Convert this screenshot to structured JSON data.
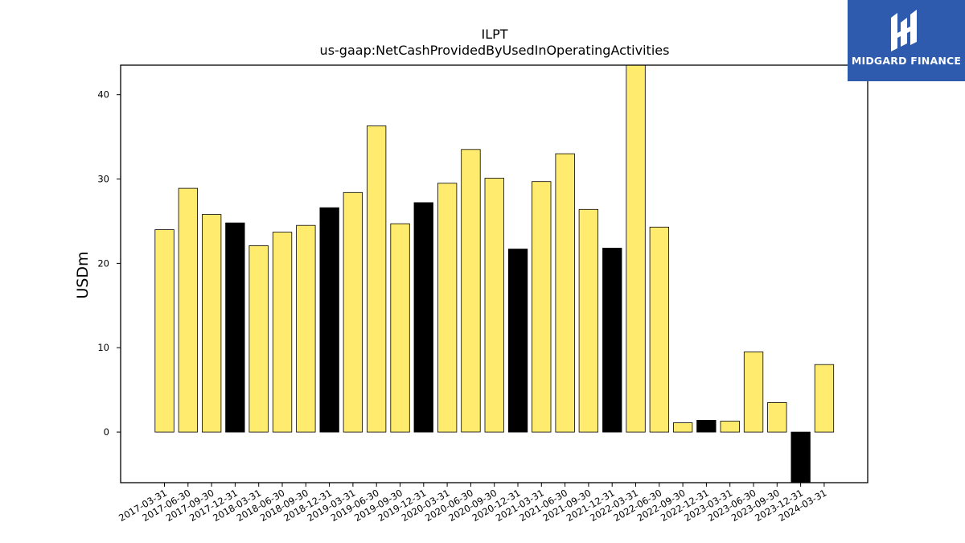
{
  "chart_data": {
    "type": "bar",
    "title": "ILPT",
    "subtitle": "us-gaap:NetCashProvidedByUsedInOperatingActivities",
    "xlabel": "",
    "ylabel": "USDm",
    "ylim": [
      -6.0,
      43.5
    ],
    "yticks": [
      0,
      10,
      20,
      30,
      40
    ],
    "grid": false,
    "categories": [
      "2017-03-31",
      "2017-06-30",
      "2017-09-30",
      "2017-12-31",
      "2018-03-31",
      "2018-06-30",
      "2018-09-30",
      "2018-12-31",
      "2019-03-31",
      "2019-06-30",
      "2019-09-30",
      "2019-12-31",
      "2020-03-31",
      "2020-06-30",
      "2020-09-30",
      "2020-12-31",
      "2021-03-31",
      "2021-06-30",
      "2021-09-30",
      "2021-12-31",
      "2022-03-31",
      "2022-06-30",
      "2022-09-30",
      "2022-12-31",
      "2023-03-31",
      "2023-06-30",
      "2023-09-30",
      "2023-12-31",
      "2024-03-31"
    ],
    "values": [
      24.0,
      28.9,
      25.8,
      24.8,
      22.1,
      23.7,
      24.5,
      26.6,
      28.4,
      36.3,
      24.7,
      27.2,
      29.5,
      33.5,
      30.1,
      21.7,
      29.7,
      33.0,
      26.4,
      21.8,
      43.5,
      24.3,
      1.1,
      1.4,
      1.3,
      9.5,
      3.5,
      -6.0,
      8.0
    ],
    "bar_colors": [
      "#ffec6e",
      "#ffec6e",
      "#ffec6e",
      "#000000",
      "#ffec6e",
      "#ffec6e",
      "#ffec6e",
      "#000000",
      "#ffec6e",
      "#ffec6e",
      "#ffec6e",
      "#000000",
      "#ffec6e",
      "#ffec6e",
      "#ffec6e",
      "#000000",
      "#ffec6e",
      "#ffec6e",
      "#ffec6e",
      "#000000",
      "#ffec6e",
      "#ffec6e",
      "#ffec6e",
      "#000000",
      "#ffec6e",
      "#ffec6e",
      "#ffec6e",
      "#000000",
      "#ffec6e"
    ]
  },
  "logo": {
    "text": "MIDGARD FINANCE",
    "background": "#2f5bae"
  }
}
